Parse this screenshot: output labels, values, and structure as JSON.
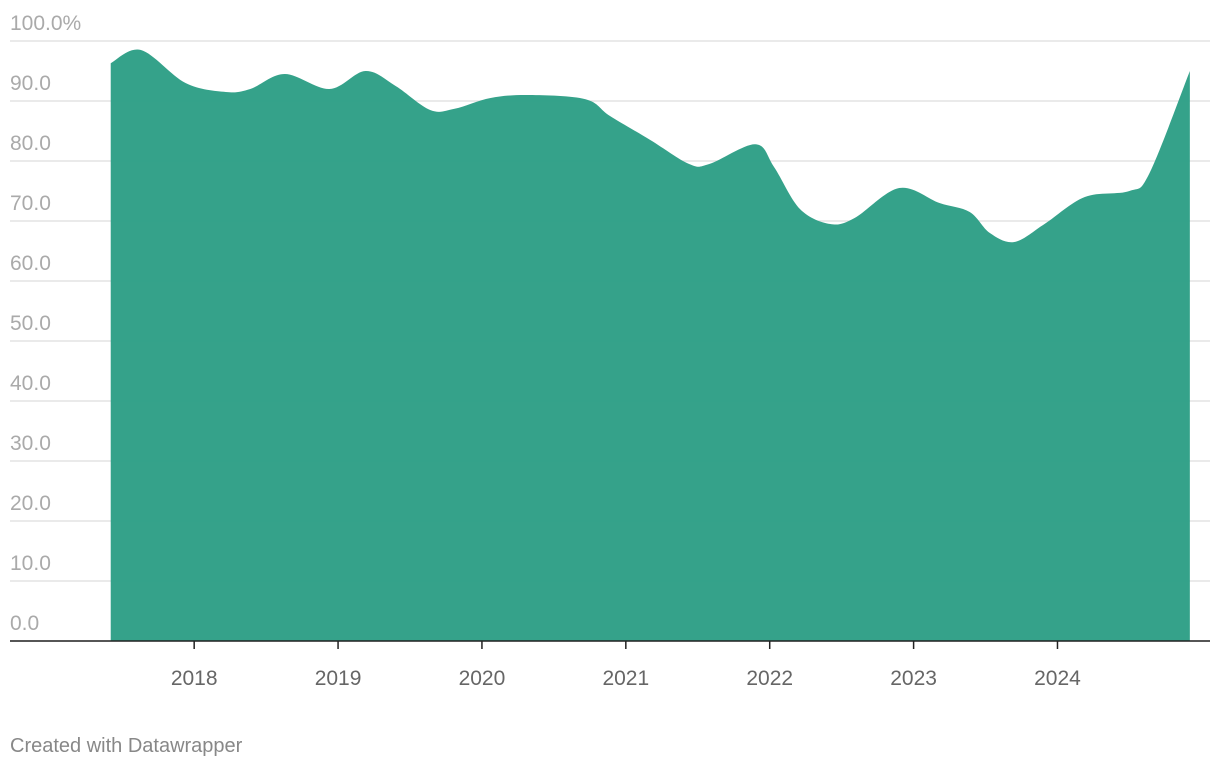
{
  "chart_data": {
    "type": "area",
    "color": "#2a9d84",
    "grid": true,
    "x": [
      2017.42,
      2017.63,
      2017.94,
      2018.22,
      2018.39,
      2018.63,
      2018.94,
      2019.19,
      2019.4,
      2019.64,
      2019.81,
      2020.06,
      2020.33,
      2020.72,
      2020.89,
      2021.17,
      2021.44,
      2021.58,
      2021.9,
      2022.03,
      2022.21,
      2022.42,
      2022.59,
      2022.9,
      2023.18,
      2023.39,
      2023.53,
      2023.7,
      2023.91,
      2024.19,
      2024.5,
      2024.64,
      2024.92
    ],
    "values": [
      96.3,
      98.5,
      93,
      91.5,
      92,
      94.5,
      92,
      95,
      92.5,
      88.5,
      88.7,
      90.5,
      91,
      90.3,
      87.5,
      83.5,
      79.5,
      79.5,
      82.8,
      79,
      72,
      69.5,
      70.5,
      75.5,
      73,
      71.5,
      68,
      66.5,
      69.5,
      74,
      75,
      78,
      95
    ],
    "xlim": [
      2016.72,
      2025.06
    ],
    "xticks": [
      2018,
      2019,
      2020,
      2021,
      2022,
      2023,
      2024
    ],
    "ylim": [
      0,
      100
    ],
    "yticks": [
      {
        "value": 0,
        "label": "0.0"
      },
      {
        "value": 10,
        "label": "10.0"
      },
      {
        "value": 20,
        "label": "20.0"
      },
      {
        "value": 30,
        "label": "30.0"
      },
      {
        "value": 40,
        "label": "40.0"
      },
      {
        "value": 50,
        "label": "50.0"
      },
      {
        "value": 60,
        "label": "60.0"
      },
      {
        "value": 70,
        "label": "70.0"
      },
      {
        "value": 80,
        "label": "80.0"
      },
      {
        "value": 90,
        "label": "90.0"
      },
      {
        "value": 100,
        "label": "100.0%"
      }
    ],
    "footer": "Created with Datawrapper"
  }
}
